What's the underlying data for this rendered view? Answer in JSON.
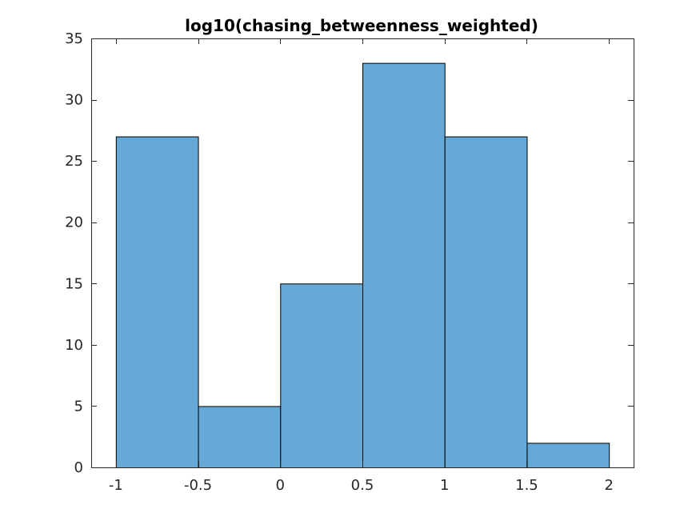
{
  "chart_data": {
    "type": "bar",
    "histogram": true,
    "title": "log10(chasing_betweenness_weighted)",
    "xlabel": "",
    "ylabel": "",
    "bin_edges": [
      -1,
      -0.5,
      0,
      0.5,
      1,
      1.5,
      2
    ],
    "values": [
      27,
      5,
      15,
      33,
      27,
      2
    ],
    "xlim": [
      -1.15,
      2.15
    ],
    "ylim": [
      0,
      35
    ],
    "xticks": [
      -1,
      -0.5,
      0,
      0.5,
      1,
      1.5,
      2
    ],
    "xtick_labels": [
      "-1",
      "-0.5",
      "0",
      "0.5",
      "1",
      "1.5",
      "2"
    ],
    "yticks": [
      0,
      5,
      10,
      15,
      20,
      25,
      30,
      35
    ],
    "ytick_labels": [
      "0",
      "5",
      "10",
      "15",
      "20",
      "25",
      "30",
      "35"
    ],
    "grid": false,
    "bar_color": "#65a9d7",
    "edge_color": "#000000"
  }
}
